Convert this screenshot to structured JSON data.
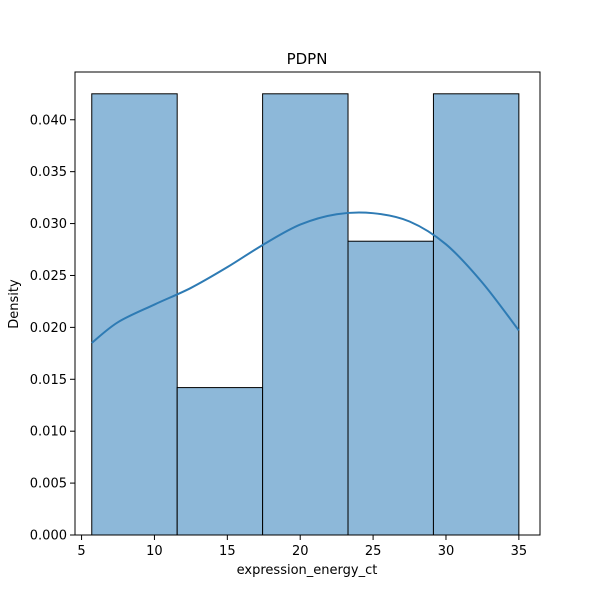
{
  "chart_data": {
    "type": "bar",
    "title": "PDPN",
    "xlabel": "expression_energy_ct",
    "ylabel": "Density",
    "xlim": [
      4.55,
      36.45
    ],
    "ylim": [
      0,
      0.0446
    ],
    "xticks": [
      5,
      10,
      15,
      20,
      25,
      30,
      35
    ],
    "yticks": [
      0.0,
      0.005,
      0.01,
      0.015,
      0.02,
      0.025,
      0.03,
      0.035,
      0.04
    ],
    "bins": [
      {
        "x0": 5.7,
        "x1": 11.56,
        "density": 0.0425
      },
      {
        "x0": 11.56,
        "x1": 17.42,
        "density": 0.0142
      },
      {
        "x0": 17.42,
        "x1": 23.28,
        "density": 0.0425
      },
      {
        "x0": 23.28,
        "x1": 29.14,
        "density": 0.0283
      },
      {
        "x0": 29.14,
        "x1": 35.0,
        "density": 0.0425
      }
    ],
    "kde": {
      "x": [
        5.7,
        7.5,
        10.0,
        12.5,
        15.0,
        17.5,
        20.0,
        22.5,
        25.0,
        27.5,
        30.0,
        32.5,
        35.0
      ],
      "y": [
        0.0185,
        0.0205,
        0.0222,
        0.0238,
        0.0258,
        0.028,
        0.0299,
        0.0309,
        0.031,
        0.0302,
        0.028,
        0.0243,
        0.0197
      ]
    },
    "grid": false,
    "colors": {
      "bar_fill": "#8db8d9",
      "bar_edge": "#000000",
      "kde_line": "#2e7bb4"
    }
  }
}
